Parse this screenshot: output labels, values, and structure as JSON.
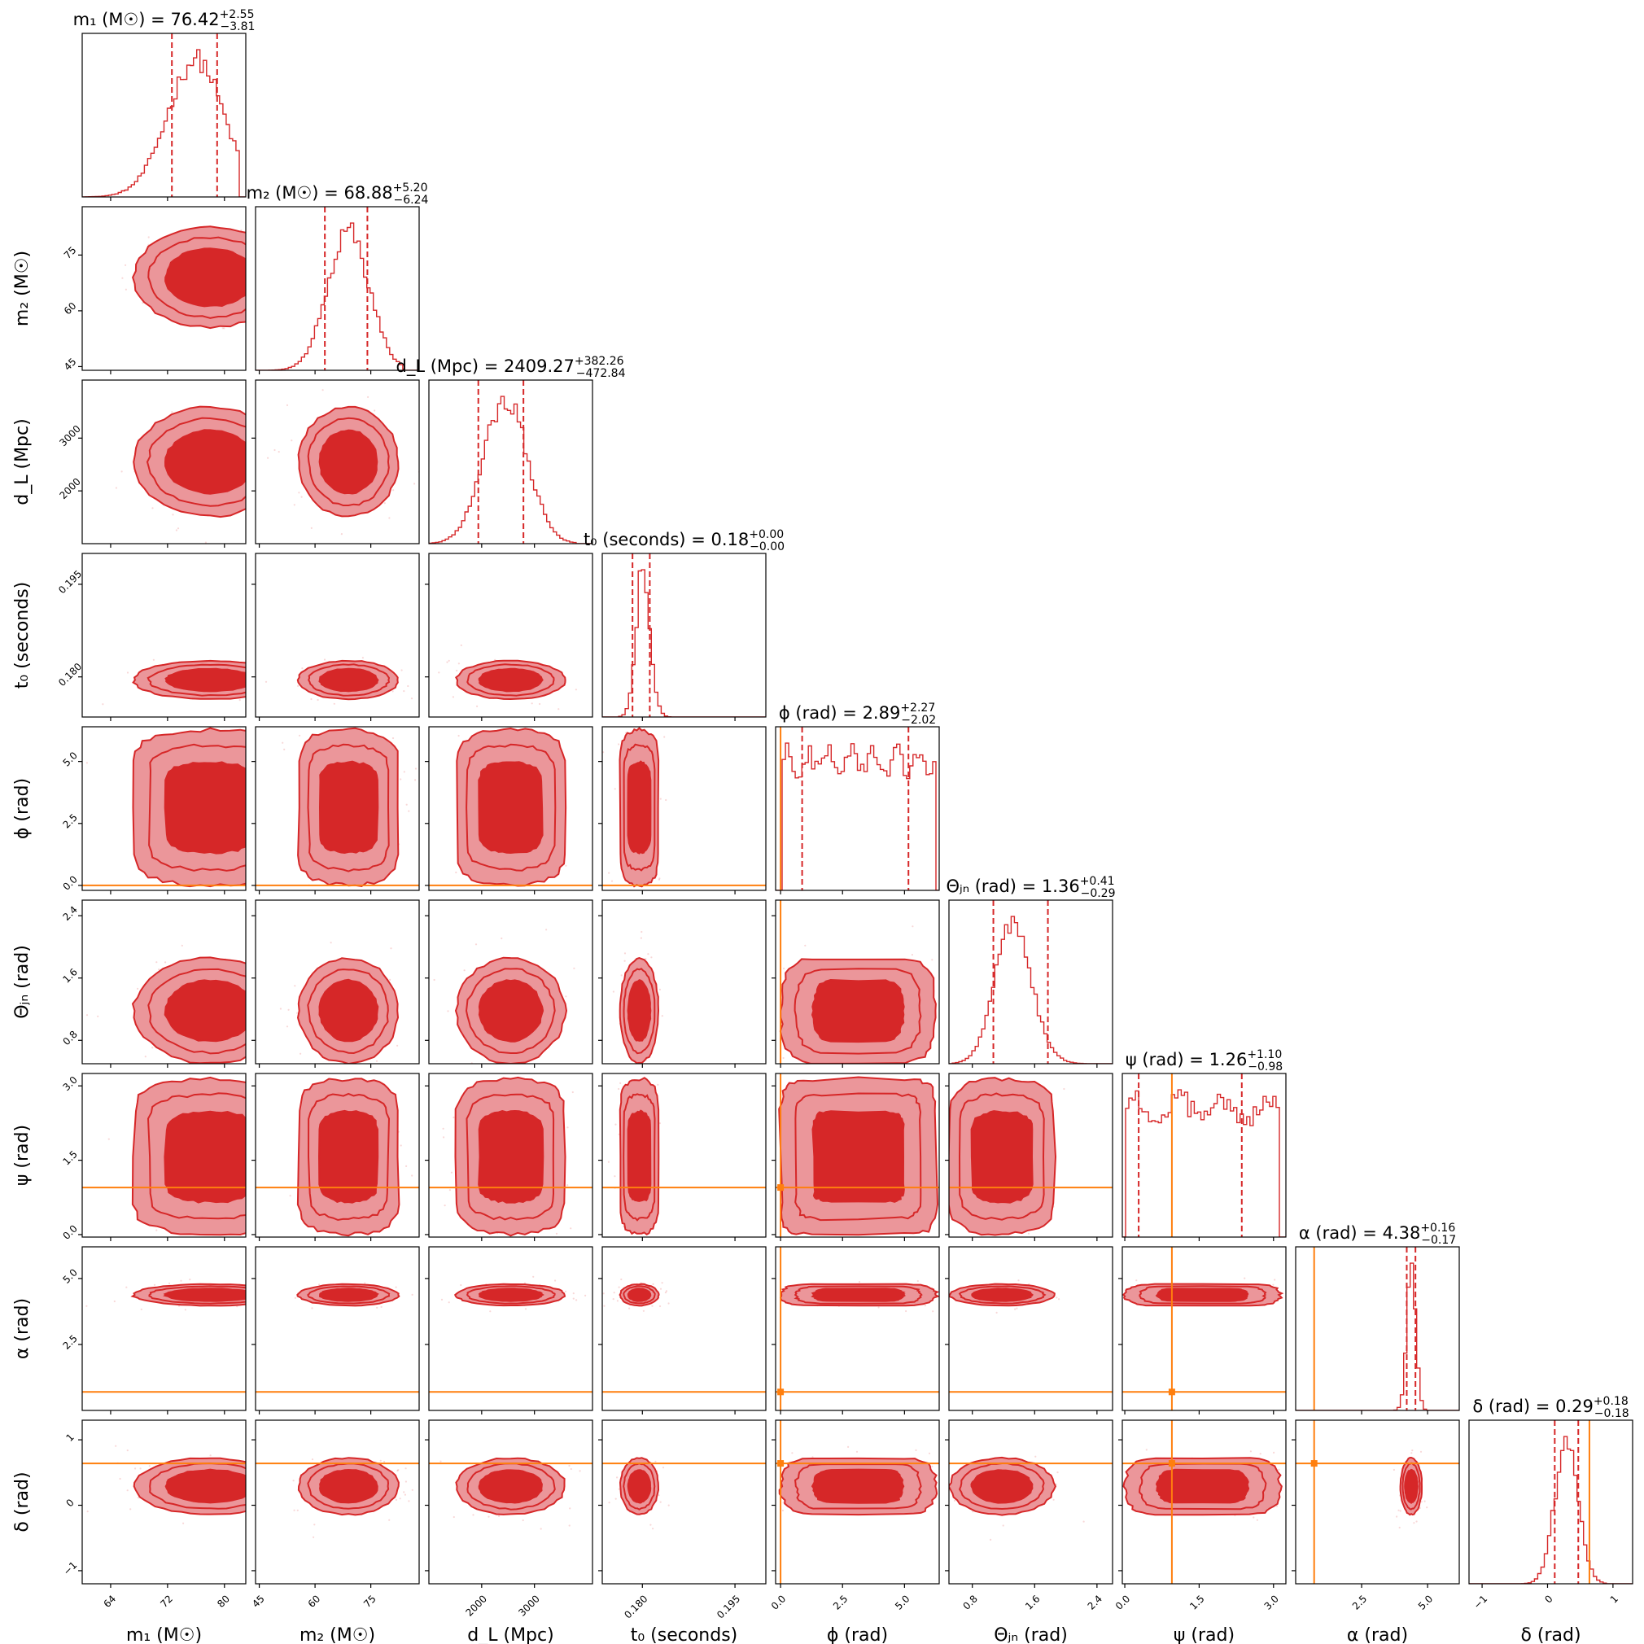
{
  "chart_data": {
    "type": "corner",
    "parameters": [
      {
        "id": "m1",
        "label": "m₁ (M☉)",
        "title_name": "m₁ (M☉)",
        "median": "76.42",
        "plus": "+2.55",
        "minus": "−3.81",
        "range": [
          60,
          83
        ],
        "ticks": [
          64,
          72,
          80
        ],
        "tick_labels": [
          "64",
          "72",
          "80"
        ],
        "q16": 72.61,
        "q84": 78.97,
        "truth": null,
        "kde": {
          "center": 78,
          "sigma": 4.5,
          "skew": -0.7,
          "lo": 58,
          "hi": 82
        }
      },
      {
        "id": "m2",
        "label": "m₂ (M☉)",
        "title_name": "m₂ (M☉)",
        "median": "68.88",
        "plus": "+5.20",
        "minus": "−6.24",
        "range": [
          44,
          88
        ],
        "ticks": [
          45,
          60,
          75
        ],
        "tick_labels": [
          "45",
          "60",
          "75"
        ],
        "q16": 62.64,
        "q84": 74.08,
        "truth": null,
        "kde": {
          "center": 69,
          "sigma": 5.6,
          "skew": 0,
          "lo": 44,
          "hi": 84
        }
      },
      {
        "id": "dl",
        "label": "d_L (Mpc)",
        "title_name": "d_L (Mpc)",
        "median": "2409.27",
        "plus": "+382.26",
        "minus": "−472.84",
        "range": [
          1000,
          4100
        ],
        "ticks": [
          2000,
          3000
        ],
        "tick_labels": [
          "2000",
          "3000"
        ],
        "q16": 1936.43,
        "q84": 2791.53,
        "truth": null,
        "kde": {
          "center": 2550,
          "sigma": 430,
          "skew": -0.3,
          "lo": 1000,
          "hi": 3800
        }
      },
      {
        "id": "t0",
        "label": "t₀ (seconds)",
        "title_name": "t₀ (seconds)",
        "median": "0.18",
        "plus": "+0.00",
        "minus": "−0.00",
        "range": [
          0.1735,
          0.2
        ],
        "ticks": [
          0.18,
          0.195
        ],
        "tick_labels": [
          "0.180",
          "0.195"
        ],
        "q16": 0.1784,
        "q84": 0.1812,
        "truth": null,
        "kde": {
          "center": 0.1795,
          "sigma": 0.0013,
          "skew": 0.8,
          "lo": 0.1735,
          "hi": 0.19
        }
      },
      {
        "id": "phi",
        "label": "ϕ (rad)",
        "title_name": "ϕ (rad)",
        "median": "2.89",
        "plus": "+2.27",
        "minus": "−2.02",
        "range": [
          -0.2,
          6.4
        ],
        "ticks": [
          0,
          2.5,
          5
        ],
        "tick_labels": [
          "0.0",
          "2.5",
          "5.0"
        ],
        "q16": 0.87,
        "q84": 5.16,
        "truth": 0,
        "kde": {
          "uniform": true,
          "lo": 0,
          "hi": 6.28
        }
      },
      {
        "id": "theta",
        "label": "Θⱼₙ (rad)",
        "title_name": "Θⱼₙ (rad)",
        "median": "1.36",
        "plus": "+0.41",
        "minus": "−0.29",
        "range": [
          0.5,
          2.6
        ],
        "ticks": [
          0.8,
          1.6,
          2.4
        ],
        "tick_labels": [
          "0.8",
          "1.6",
          "2.4"
        ],
        "q16": 1.07,
        "q84": 1.77,
        "truth": null,
        "kde": {
          "center": 1.18,
          "sigma": 0.28,
          "skew": 0.9,
          "lo": 0.55,
          "hi": 2.45
        }
      },
      {
        "id": "psi",
        "label": "ψ (rad)",
        "title_name": "ψ (rad)",
        "median": "1.26",
        "plus": "+1.10",
        "minus": "−0.98",
        "range": [
          -0.05,
          3.25
        ],
        "ticks": [
          0,
          1.5,
          3
        ],
        "tick_labels": [
          "0.0",
          "1.5",
          "3.0"
        ],
        "q16": 0.28,
        "q84": 2.36,
        "truth": 0.95,
        "kde": {
          "uniform": true,
          "lo": 0,
          "hi": 3.14
        }
      },
      {
        "id": "alpha",
        "label": "α (rad)",
        "title_name": "α (rad)",
        "median": "4.38",
        "plus": "+0.16",
        "minus": "−0.17",
        "range": [
          0,
          6.2
        ],
        "ticks": [
          2.5,
          5
        ],
        "tick_labels": [
          "2.5",
          "5.0"
        ],
        "q16": 4.21,
        "q84": 4.54,
        "truth": 0.7,
        "kde": {
          "center": 4.38,
          "sigma": 0.17,
          "skew": 0,
          "lo": 3.7,
          "hi": 5.0
        }
      },
      {
        "id": "delta",
        "label": "δ (rad)",
        "title_name": "δ (rad)",
        "median": "0.29",
        "plus": "+0.18",
        "minus": "−0.18",
        "range": [
          -1.2,
          1.3
        ],
        "ticks": [
          -1,
          0,
          1
        ],
        "tick_labels": [
          "−1",
          "0",
          "1"
        ],
        "q16": 0.11,
        "q84": 0.47,
        "truth": 0.64,
        "kde": {
          "center": 0.29,
          "sigma": 0.18,
          "skew": 0,
          "lo": -0.4,
          "hi": 0.9
        }
      }
    ],
    "colors": {
      "samples": "#d62728",
      "contour_inner": "#d62728",
      "contour_outer": "#eb969a",
      "truth": "#ff7f0e"
    }
  }
}
